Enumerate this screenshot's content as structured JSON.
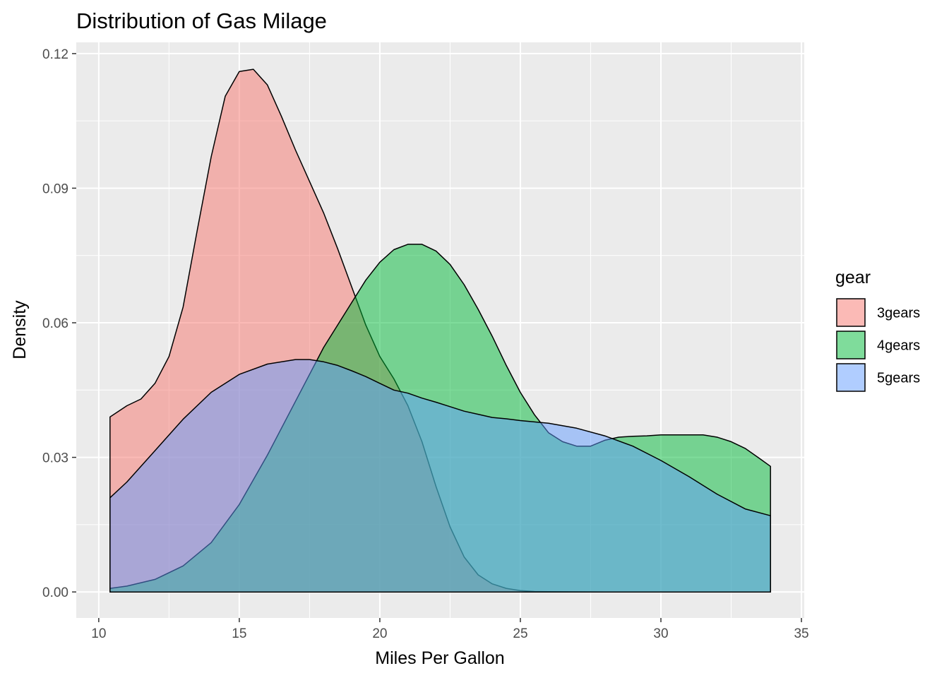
{
  "chart_data": {
    "type": "area",
    "title": "Distribution of Gas Milage",
    "xlabel": "Miles Per Gallon",
    "ylabel": "Density",
    "xlim": [
      9.2,
      35.1
    ],
    "ylim": [
      -0.0058,
      0.1225
    ],
    "x_ticks": [
      10,
      15,
      20,
      25,
      30,
      35
    ],
    "x_tick_labels": [
      "10",
      "15",
      "20",
      "25",
      "30",
      "35"
    ],
    "y_ticks": [
      0,
      0.03,
      0.06,
      0.09,
      0.12
    ],
    "y_tick_labels": [
      "0.00",
      "0.03",
      "0.06",
      "0.09",
      "0.12"
    ],
    "grid": true,
    "panel_background": "#EBEBEB",
    "legend": {
      "title": "gear",
      "position": "right",
      "entries": [
        "3gears",
        "4gears",
        "5gears"
      ]
    },
    "series": [
      {
        "name": "3gears",
        "color": "#F8766D",
        "fill_opacity": 0.5,
        "x": [
          10.4,
          11,
          11.5,
          12,
          12.5,
          13,
          13.5,
          14,
          14.5,
          15,
          15.5,
          16,
          16.5,
          17,
          17.5,
          18,
          18.5,
          19,
          19.5,
          20,
          20.5,
          21,
          21.5,
          22,
          22.5,
          23,
          23.5,
          24,
          24.5,
          25,
          25.5,
          26,
          27,
          28,
          29,
          30,
          31,
          32,
          33,
          33.9
        ],
        "y": [
          0.039,
          0.0415,
          0.043,
          0.0465,
          0.0525,
          0.0635,
          0.0805,
          0.097,
          0.1105,
          0.116,
          0.1165,
          0.113,
          0.106,
          0.0985,
          0.0915,
          0.0845,
          0.0765,
          0.068,
          0.0595,
          0.0525,
          0.0475,
          0.0415,
          0.0335,
          0.0235,
          0.0145,
          0.0078,
          0.0038,
          0.0018,
          0.0008,
          0.0003,
          0.0001,
          5e-05,
          2e-05,
          0,
          0,
          0,
          0,
          0,
          0,
          0
        ]
      },
      {
        "name": "4gears",
        "color": "#00BA38",
        "fill_opacity": 0.5,
        "x": [
          10.4,
          11,
          12,
          13,
          14,
          15,
          16,
          17,
          18,
          19,
          19.5,
          20,
          20.5,
          21,
          21.5,
          22,
          22.5,
          23,
          23.5,
          24,
          24.5,
          25,
          25.5,
          26,
          26.5,
          27,
          27.5,
          28,
          28.5,
          29,
          29.5,
          30,
          30.5,
          31,
          31.5,
          32,
          32.5,
          33,
          33.5,
          33.9
        ],
        "y": [
          0.0008,
          0.0013,
          0.0028,
          0.0058,
          0.011,
          0.0195,
          0.0305,
          0.0425,
          0.0545,
          0.0645,
          0.0695,
          0.0735,
          0.0763,
          0.0775,
          0.0775,
          0.076,
          0.073,
          0.0685,
          0.063,
          0.057,
          0.0505,
          0.0445,
          0.0395,
          0.0355,
          0.0335,
          0.0325,
          0.0325,
          0.0338,
          0.0345,
          0.0347,
          0.0348,
          0.035,
          0.035,
          0.035,
          0.035,
          0.0345,
          0.0335,
          0.032,
          0.0298,
          0.028
        ]
      },
      {
        "name": "5gears",
        "color": "#619CFF",
        "fill_opacity": 0.5,
        "x": [
          10.4,
          11,
          12,
          13,
          14,
          15,
          16,
          17,
          17.5,
          18,
          18.5,
          19,
          19.5,
          20,
          20.5,
          21,
          21.5,
          22,
          22.5,
          23,
          23.5,
          24,
          24.5,
          25,
          25.5,
          26,
          27,
          28,
          29,
          30,
          31,
          32,
          33,
          33.9
        ],
        "y": [
          0.021,
          0.0245,
          0.0315,
          0.0385,
          0.0445,
          0.0485,
          0.0508,
          0.0518,
          0.0518,
          0.0513,
          0.0505,
          0.0493,
          0.048,
          0.0465,
          0.045,
          0.0443,
          0.0432,
          0.0423,
          0.0413,
          0.0403,
          0.0396,
          0.0389,
          0.0386,
          0.0382,
          0.0379,
          0.0376,
          0.0365,
          0.0348,
          0.0325,
          0.0293,
          0.0257,
          0.0218,
          0.0185,
          0.017
        ]
      }
    ]
  }
}
